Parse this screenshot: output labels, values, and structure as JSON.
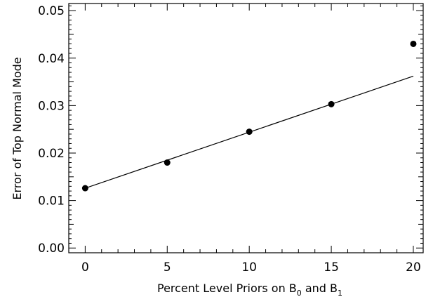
{
  "chart_data": {
    "type": "scatter",
    "xlabel_parts": {
      "prefix": "Percent Level Priors on B",
      "sub1": "0",
      "middle": " and B",
      "sub2": "1"
    },
    "ylabel": "Error of Top Normal Mode",
    "xlim": [
      -1,
      20.6
    ],
    "ylim": [
      -0.001,
      0.0515
    ],
    "x_ticks": [
      0,
      5,
      10,
      15,
      20
    ],
    "x_tick_labels": [
      "0",
      "5",
      "10",
      "15",
      "20"
    ],
    "y_ticks": [
      0.0,
      0.01,
      0.02,
      0.03,
      0.04,
      0.05
    ],
    "y_tick_labels": [
      "0.00",
      "0.01",
      "0.02",
      "0.03",
      "0.04",
      "0.05"
    ],
    "points": [
      {
        "x": 0,
        "y": 0.0126
      },
      {
        "x": 5,
        "y": 0.018
      },
      {
        "x": 10,
        "y": 0.0245
      },
      {
        "x": 15,
        "y": 0.0303
      },
      {
        "x": 20,
        "y": 0.043
      }
    ],
    "fit_line": {
      "x": [
        0,
        20
      ],
      "y": [
        0.0126,
        0.0362
      ]
    },
    "grid": false,
    "legend": "none"
  }
}
